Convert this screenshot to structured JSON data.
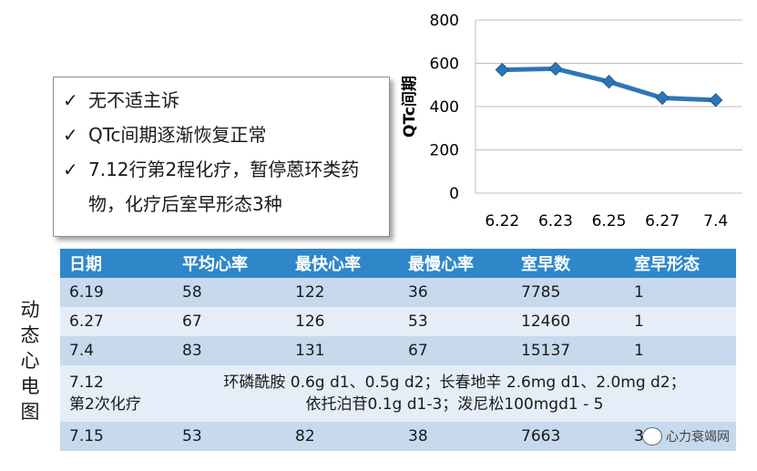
{
  "notes": [
    "无不适主诉",
    "QTc间期逐渐恢复正常",
    "7.12行第2程化疗，暂停蒽环类药物，化疗后室早形态3种"
  ],
  "check_symbol": "✓",
  "chart_data": {
    "type": "line",
    "categories": [
      "6.22",
      "6.23",
      "6.25",
      "6.27",
      "7.4"
    ],
    "values": [
      570,
      575,
      515,
      440,
      430
    ],
    "ylabel": "QTc间期",
    "ylim": [
      0,
      800
    ],
    "yticks": [
      "0",
      "200",
      "400",
      "600",
      "800"
    ],
    "grid": true,
    "color": "#2e75b6"
  },
  "side_label": [
    "动",
    "态",
    "心",
    "电",
    "图"
  ],
  "table": {
    "headers": [
      "日期",
      "平均心率",
      "最快心率",
      "最慢心率",
      "室早数",
      "室早形态"
    ],
    "rows": [
      [
        "6.19",
        "58",
        "122",
        "36",
        "7785",
        "1"
      ],
      [
        "6.27",
        "67",
        "126",
        "53",
        "12460",
        "1"
      ],
      [
        "7.4",
        "83",
        "131",
        "67",
        "15137",
        "1"
      ]
    ],
    "merged_row": {
      "date_line1": "7.12",
      "date_line2": "第2次化疗",
      "text_line1": "环磷酰胺 0.6g d1、0.5g d2；长春地辛 2.6mg d1、2.0mg d2；",
      "text_line2": "依托泊苷0.1g d1-3；泼尼松100mgd1 - 5"
    },
    "last_row": [
      "7.15",
      "53",
      "82",
      "38",
      "7663",
      "3"
    ]
  },
  "watermark": "心力衰竭网",
  "colors": {
    "header": "#2f87c9",
    "row_dark": "#c7d9ed",
    "row_light": "#e5eef8"
  }
}
